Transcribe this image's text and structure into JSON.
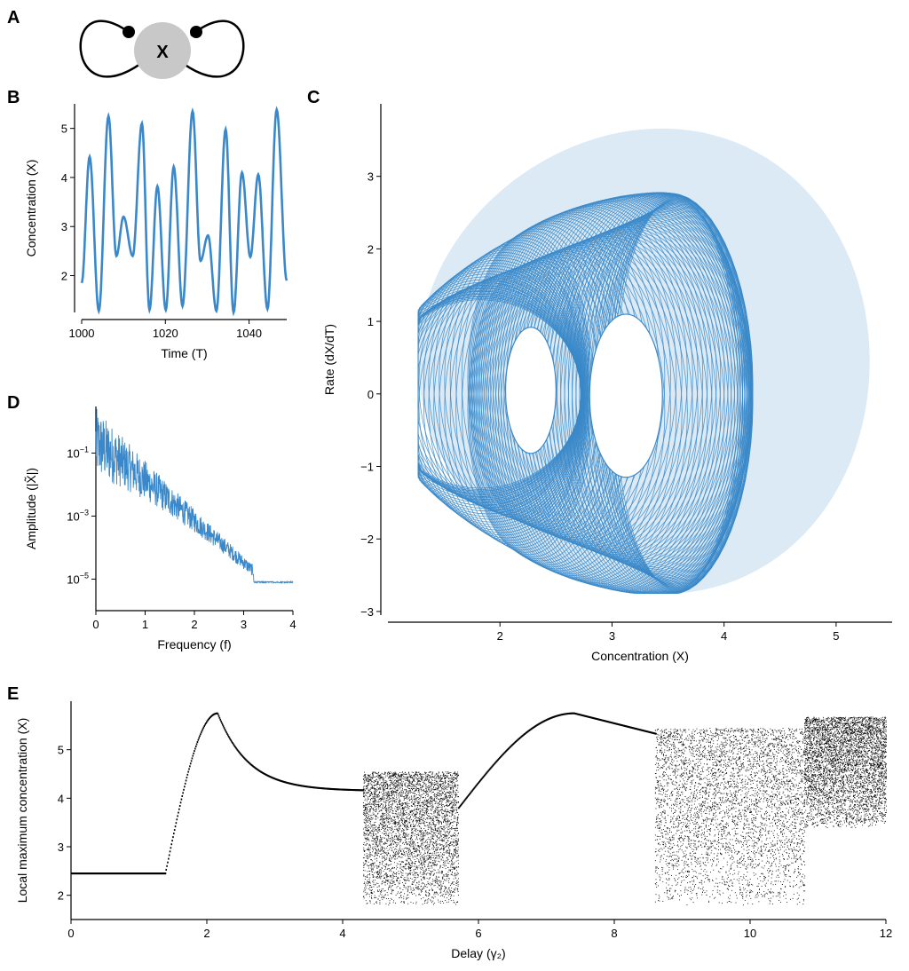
{
  "panels": {
    "A": "A",
    "B": "B",
    "C": "C",
    "D": "D",
    "E": "E"
  },
  "diagram": {
    "node_label": "X"
  },
  "colors": {
    "series": "#3a88c9",
    "node": "#c8c8c8",
    "bifurcation": "#000000"
  },
  "chart_data": [
    {
      "id": "B",
      "type": "line",
      "xlabel": "Time (T)",
      "ylabel": "Concentration (X)",
      "xlim": [
        1000,
        1049
      ],
      "ylim": [
        1.25,
        5.5
      ],
      "xticks": [
        1000,
        1020,
        1040
      ],
      "yticks": [
        2,
        3,
        4,
        5
      ],
      "peaks_x": [
        1001.9,
        1006.4,
        1010.0,
        1014.4,
        1018.1,
        1022.0,
        1026.5,
        1030.2,
        1034.4,
        1038.3,
        1042.2,
        1046.6
      ],
      "peaks_y": [
        4.42,
        5.25,
        3.2,
        5.1,
        3.82,
        4.22,
        5.35,
        2.82,
        4.98,
        4.1,
        4.06,
        5.38
      ],
      "troughs_x": [
        1000.0,
        1004.1,
        1008.3,
        1012.2,
        1016.2,
        1020.1,
        1024.1,
        1028.4,
        1032.2,
        1036.3,
        1040.3,
        1044.4,
        1049.0
      ],
      "troughs_y": [
        1.85,
        1.28,
        2.4,
        2.4,
        1.3,
        1.3,
        1.38,
        2.3,
        1.28,
        1.25,
        2.38,
        1.32,
        1.9
      ]
    },
    {
      "id": "C",
      "type": "line",
      "xlabel": "Concentration (X)",
      "ylabel": "Rate (dX/dT)",
      "xlim": [
        1.0,
        5.5
      ],
      "ylim": [
        -3.05,
        4.0
      ],
      "xticks": [
        2,
        3,
        4,
        5
      ],
      "yticks": [
        -3,
        -2,
        -1,
        0,
        1,
        2,
        3
      ],
      "outer_boundary": {
        "x_range": [
          1.27,
          5.3
        ],
        "y_range": [
          -2.75,
          3.65
        ]
      },
      "inner_hole_left": {
        "x_range": [
          2.05,
          2.5
        ],
        "y_range": [
          -0.82,
          0.92
        ]
      },
      "inner_hole_right": {
        "x_range": [
          2.8,
          3.45
        ],
        "y_range": [
          -1.15,
          1.1
        ]
      }
    },
    {
      "id": "D",
      "type": "line",
      "yscale": "log",
      "xlabel": "Frequency (f)",
      "ylabel": "Amplitude (|X̃|)",
      "xlim": [
        0,
        4
      ],
      "ylim": [
        1e-06,
        3
      ],
      "xticks": [
        0,
        1,
        2,
        3,
        4
      ],
      "yticks": [
        0.1,
        0.001,
        1e-05
      ],
      "ytick_labels": [
        "10",
        "10",
        "10"
      ],
      "ytick_exponents": [
        "−1",
        "−3",
        "−5"
      ],
      "noise_floor": 8e-06
    },
    {
      "id": "E",
      "type": "scatter",
      "xlabel": "Delay (γ₂)",
      "ylabel": "Local maximum concentration (X)",
      "xlim": [
        0,
        12
      ],
      "ylim": [
        1.5,
        6.0
      ],
      "xticks": [
        0,
        2,
        4,
        6,
        8,
        10,
        12
      ],
      "yticks": [
        2,
        3,
        4,
        5
      ],
      "regions": [
        {
          "x": [
            0,
            1.38
          ],
          "kind": "flat",
          "value": 2.45
        },
        {
          "x": [
            1.38,
            4.3
          ],
          "kind": "periodic",
          "peak_x": 2.15,
          "peak_y": 5.75,
          "end_y": 4.15
        },
        {
          "x": [
            4.3,
            5.7
          ],
          "kind": "chaotic",
          "y_min": 1.8,
          "y_max": 4.55
        },
        {
          "x": [
            5.7,
            8.6
          ],
          "kind": "periodic",
          "peak_x": 7.4,
          "peak_y": 5.75
        },
        {
          "x": [
            8.6,
            10.8
          ],
          "kind": "chaotic",
          "y_min": 1.8,
          "y_max": 5.45
        },
        {
          "x": [
            10.8,
            12
          ],
          "kind": "periodic_chaotic",
          "y_min": 3.4,
          "y_max": 5.68
        }
      ]
    }
  ]
}
